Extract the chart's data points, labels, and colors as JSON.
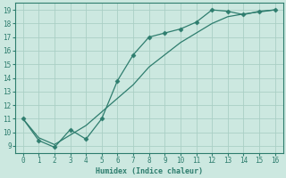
{
  "title": "",
  "xlabel": "Humidex (Indice chaleur)",
  "ylabel": "",
  "bg_color": "#cce8e0",
  "line_color": "#2e7d6e",
  "markersize": 2.5,
  "linewidth": 0.9,
  "xlim": [
    -0.5,
    16.5
  ],
  "ylim": [
    8.5,
    19.5
  ],
  "xticks": [
    0,
    1,
    2,
    3,
    4,
    5,
    6,
    7,
    8,
    9,
    10,
    11,
    12,
    13,
    14,
    15,
    16
  ],
  "yticks": [
    9,
    10,
    11,
    12,
    13,
    14,
    15,
    16,
    17,
    18,
    19
  ],
  "grid_color": "#aacfc5",
  "series1_x": [
    0,
    1,
    2,
    3,
    4,
    5,
    6,
    7,
    8,
    9,
    10,
    11,
    12,
    13,
    14,
    15,
    16
  ],
  "series1_y": [
    11.0,
    9.4,
    8.9,
    10.2,
    9.5,
    11.0,
    13.8,
    15.7,
    17.0,
    17.3,
    17.6,
    18.1,
    19.0,
    18.9,
    18.65,
    18.9,
    19.0
  ],
  "series2_x": [
    0,
    1,
    2,
    3,
    4,
    5,
    6,
    7,
    8,
    9,
    10,
    11,
    12,
    13,
    14,
    15,
    16
  ],
  "series2_y": [
    11.0,
    9.6,
    9.1,
    9.8,
    10.5,
    11.5,
    12.5,
    13.5,
    14.8,
    15.7,
    16.6,
    17.3,
    18.0,
    18.5,
    18.7,
    18.85,
    19.0
  ],
  "tick_fontsize": 5.5,
  "xlabel_fontsize": 6.0
}
